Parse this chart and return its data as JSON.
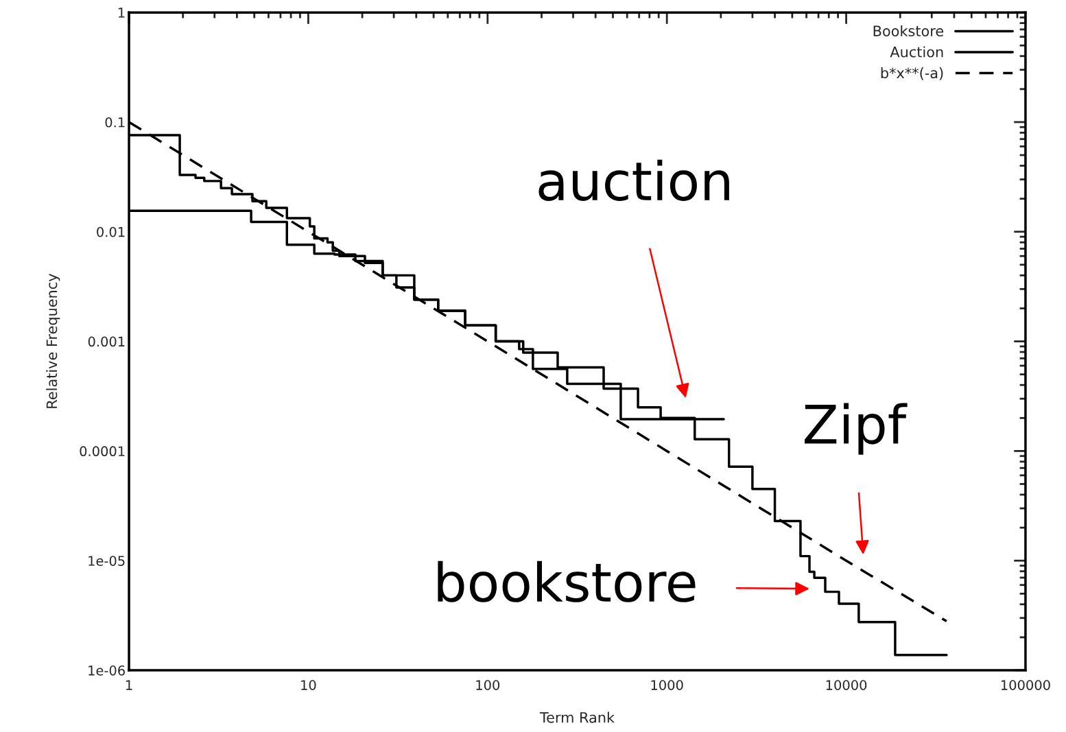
{
  "chart_data": {
    "type": "line",
    "xlabel": "Term Rank",
    "ylabel": "Relative Frequency",
    "log": "xy",
    "grid": false,
    "legend": "top right",
    "xlim": [
      1,
      100000
    ],
    "xticks": [
      1,
      10,
      100,
      1000,
      10000,
      100000
    ],
    "ylim": [
      1e-06,
      1
    ],
    "yticks": [
      1,
      0.1,
      0.01,
      0.001,
      0.0001,
      1e-05,
      1e-06
    ],
    "series": [
      {
        "name": "Bookstore",
        "type": "step",
        "color": "#000000",
        "line_style": "solid",
        "x": [
          1,
          3.0,
          4.8,
          7.6,
          10.8,
          14,
          18.3,
          26,
          39,
          53,
          75,
          111,
          158,
          246,
          444,
          690,
          923,
          1430,
          2220,
          3000,
          4000,
          5560,
          6240,
          6640,
          7640,
          9110,
          11750,
          18750,
          36300
        ],
        "values": [
          0.0155,
          0.0155,
          0.0123,
          0.0076,
          0.0063,
          0.0062,
          0.0054,
          0.004,
          0.0024,
          0.0019,
          0.0014,
          0.001,
          0.00079,
          0.00058,
          0.00037,
          0.00025,
          0.0002,
          0.000128,
          7.2e-05,
          4.5e-05,
          2.3e-05,
          1.1e-05,
          7.9e-06,
          6.98e-06,
          5.2e-06,
          4.05e-06,
          2.75e-06,
          1.38e-06,
          1.38e-06
        ]
      },
      {
        "name": "Auction",
        "type": "step",
        "color": "#000000",
        "line_style": "solid",
        "x": [
          1,
          1.92,
          2.35,
          2.63,
          3.26,
          3.75,
          4.88,
          5.83,
          7.6,
          10.2,
          10.8,
          12.8,
          13.7,
          14.9,
          20.7,
          26,
          31,
          39,
          53,
          75,
          111,
          150,
          179,
          278,
          553,
          2075
        ],
        "values": [
          0.076,
          0.033,
          0.031,
          0.029,
          0.025,
          0.022,
          0.019,
          0.0165,
          0.0133,
          0.0112,
          0.0087,
          0.008,
          0.0067,
          0.006,
          0.0052,
          0.004,
          0.0031,
          0.0024,
          0.0019,
          0.0014,
          0.001,
          0.00085,
          0.00056,
          0.00041,
          0.000195,
          0.000195
        ]
      },
      {
        "name": "b*x**(-a)",
        "color": "#000000",
        "line_style": "dashed",
        "x": [
          1,
          10,
          100,
          1000,
          10000,
          36300
        ],
        "values": [
          0.1,
          0.01,
          0.001,
          0.0001,
          1e-05,
          2.8e-06
        ]
      }
    ],
    "annotations": [
      "auction",
      "Zipf",
      "bookstore"
    ]
  }
}
